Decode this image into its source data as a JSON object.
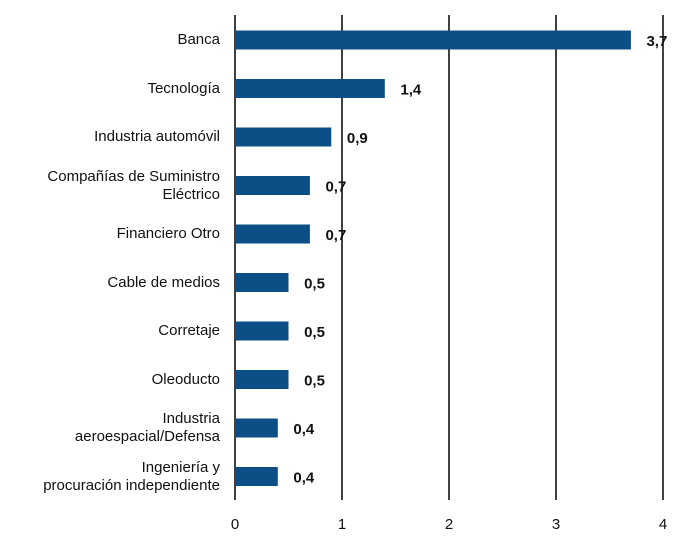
{
  "chart_data": {
    "type": "bar",
    "orientation": "horizontal",
    "categories": [
      "Banca",
      "Tecnología",
      "Industria automóvil",
      "Compañías de Suministro\nEléctrico",
      "Financiero Otro",
      "Cable de medios",
      "Corretaje",
      "Oleoducto",
      "Industria\naeroespacial/Defensa",
      "Ingeniería y\nprocuración independiente"
    ],
    "values": [
      3.7,
      1.4,
      0.9,
      0.7,
      0.7,
      0.5,
      0.5,
      0.5,
      0.4,
      0.4
    ],
    "value_labels": [
      "3,7",
      "1,4",
      "0,9",
      "0,7",
      "0,7",
      "0,5",
      "0,5",
      "0,5",
      "0,4",
      "0,4"
    ],
    "color": "#0b4f86",
    "xlim": [
      0,
      4
    ],
    "xticks": [
      0,
      1,
      2,
      3,
      4
    ],
    "grid": true
  }
}
